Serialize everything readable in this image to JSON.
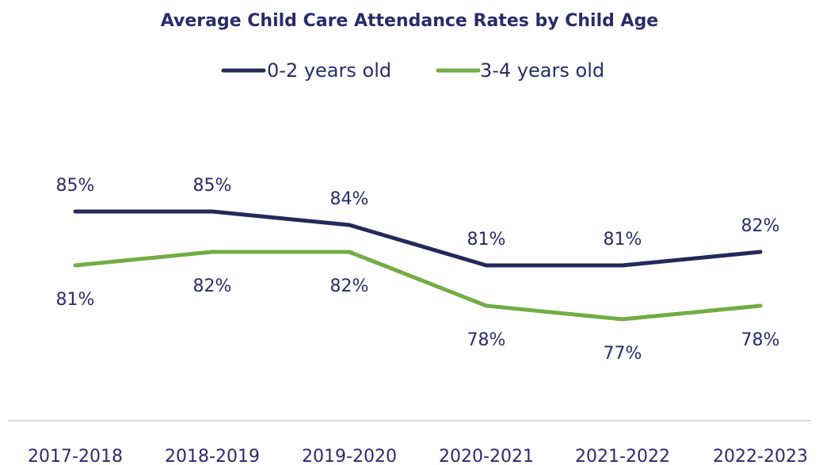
{
  "chart_data": {
    "type": "line",
    "title": "Average Child Care Attendance Rates by Child Age",
    "categories": [
      "2017-2018",
      "2018-2019",
      "2019-2020",
      "2020-2021",
      "2021-2022",
      "2022-2023"
    ],
    "series": [
      {
        "name": "0-2 years old",
        "color": "#26285b",
        "values": [
          85,
          85,
          84,
          81,
          81,
          82
        ],
        "labels": [
          "85%",
          "85%",
          "84%",
          "81%",
          "81%",
          "82%"
        ]
      },
      {
        "name": "3-4 years old",
        "color": "#72ad45",
        "values": [
          81,
          82,
          82,
          78,
          77,
          78
        ],
        "labels": [
          "81%",
          "82%",
          "82%",
          "78%",
          "77%",
          "78%"
        ]
      }
    ],
    "ylim": [
      72,
      90
    ],
    "grid": false,
    "legend_position": "top-center",
    "axis_line_color": "#d9d9d9"
  }
}
